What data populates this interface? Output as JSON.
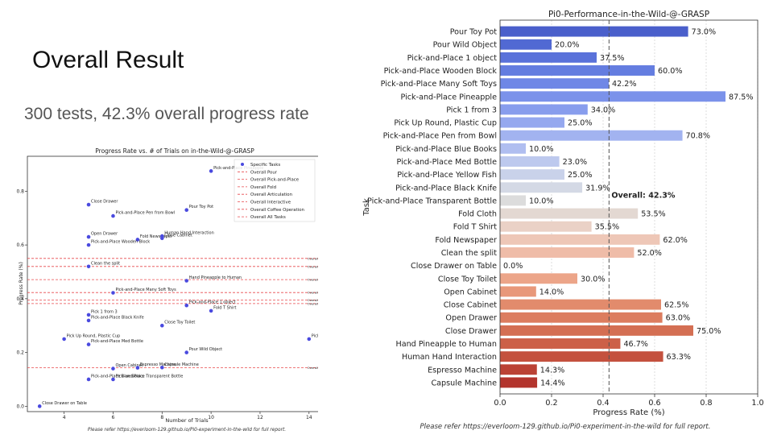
{
  "slide": {
    "title": "Overall Result",
    "subtitle": "300 tests, 42.3% overall progress rate"
  },
  "chart_data": [
    {
      "type": "scatter",
      "title": "Progress Rate vs. # of Trials on in-the-Wild-@-GRASP",
      "xlabel": "Number of Trials",
      "ylabel": "Progress Rate (%)",
      "xlim": [
        2.5,
        14.5
      ],
      "ylim": [
        -0.02,
        0.93
      ],
      "xticks": [
        4,
        6,
        8,
        10,
        12,
        14
      ],
      "yticks": [
        0.0,
        0.2,
        0.4,
        0.6,
        0.8
      ],
      "grid": false,
      "legend_position": "top-right",
      "point_color": "#4a4adf",
      "line_color": "#e8484c",
      "legend": [
        "Specific Tasks",
        "Overall Pour",
        "Overall Pick-and-Place",
        "Overall Fold",
        "Overall Articulation",
        "Overall Interactive",
        "Overall Coffee Operation",
        "Overall All Tasks"
      ],
      "points": [
        {
          "label": "Pick-and-Place Pineapple",
          "x": 10,
          "y": 0.875
        },
        {
          "label": "Close Drawer",
          "x": 5,
          "y": 0.75
        },
        {
          "label": "Pour Toy Pot",
          "x": 9,
          "y": 0.73
        },
        {
          "label": "Pick-and-Place Pen from Bowl",
          "x": 6,
          "y": 0.708
        },
        {
          "label": "Open Drawer",
          "x": 5,
          "y": 0.63
        },
        {
          "label": "Fold Newspaper",
          "x": 7,
          "y": 0.62
        },
        {
          "label": "Human Hand Interaction",
          "x": 8,
          "y": 0.633
        },
        {
          "label": "Close Cabinet",
          "x": 8,
          "y": 0.625
        },
        {
          "label": "Pick-and-Place Wooden Block",
          "x": 5,
          "y": 0.6
        },
        {
          "label": "Clean the split",
          "x": 5,
          "y": 0.52
        },
        {
          "label": "Hand Pineapple to Human",
          "x": 9,
          "y": 0.467
        },
        {
          "label": "Pick-and-Place Many Soft Toys",
          "x": 6,
          "y": 0.422
        },
        {
          "label": "Pick-and-Place 1 object",
          "x": 9,
          "y": 0.375
        },
        {
          "label": "Fold T Shirt",
          "x": 10,
          "y": 0.355
        },
        {
          "label": "Pick 1 from 3",
          "x": 5,
          "y": 0.34
        },
        {
          "label": "Pick-and-Place Black Knife",
          "x": 5,
          "y": 0.319
        },
        {
          "label": "Close Toy Toilet",
          "x": 8,
          "y": 0.3
        },
        {
          "label": "Pick-and-Place Yellow Fish",
          "x": 14,
          "y": 0.25
        },
        {
          "label": "Pick Up Round, Plastic Cup",
          "x": 4,
          "y": 0.25
        },
        {
          "label": "Pick-and-Place Med Bottle",
          "x": 5,
          "y": 0.23
        },
        {
          "label": "Pour Wild Object",
          "x": 9,
          "y": 0.2
        },
        {
          "label": "Open Cabinet",
          "x": 6,
          "y": 0.14
        },
        {
          "label": "Espresso Machine",
          "x": 7,
          "y": 0.143
        },
        {
          "label": "Capsule Machine",
          "x": 8,
          "y": 0.144
        },
        {
          "label": "Pick-and-Place Blue Books",
          "x": 5,
          "y": 0.1
        },
        {
          "label": "Pick-and-Place Transparent Bottle",
          "x": 6,
          "y": 0.1
        },
        {
          "label": "Close Drawer on Table",
          "x": 3,
          "y": 0.0
        }
      ],
      "lines": [
        {
          "label": "Overall Interactive: 55.0%",
          "y": 0.55
        },
        {
          "label": "Overall Pour: 52.0%",
          "y": 0.52
        },
        {
          "label": "Overall Fold: 47.1%",
          "y": 0.471
        },
        {
          "label": "Overall All Tasks: 42.3%",
          "y": 0.423
        },
        {
          "label": "Overall Pick-and-Place: 39.5%",
          "y": 0.395
        },
        {
          "label": "Overall Articulation: 38.2%",
          "y": 0.382
        },
        {
          "label": "Overall Coffee Operation: 14",
          "y": 0.143
        }
      ],
      "footnote": "Please refer https://everloom-129.github.io/Pi0-experiment-in-the-wild for full report."
    },
    {
      "type": "bar",
      "orientation": "horizontal",
      "title": "Pi0-Performance-in-the-Wild-@-GRASP",
      "xlabel": "Progress Rate (%)",
      "ylabel": "Task",
      "xlim": [
        0.0,
        1.0
      ],
      "xticks": [
        0.0,
        0.2,
        0.4,
        0.6,
        0.8,
        1.0
      ],
      "grid": true,
      "categories": [
        "Pour Toy Pot",
        "Pour Wild Object",
        "Pick-and-Place 1 object",
        "Pick-and-Place Wooden Block",
        "Pick-and-Place Many Soft Toys",
        "Pick-and-Place Pineapple",
        "Pick 1 from 3",
        "Pick Up Round, Plastic Cup",
        "Pick-and-Place Pen from Bowl",
        "Pick-and-Place Blue Books",
        "Pick-and-Place Med Bottle",
        "Pick-and-Place Yellow Fish",
        "Pick-and-Place Black Knife",
        "Pick-and-Place Transparent Bottle",
        "Fold Cloth",
        "Fold T Shirt",
        "Fold Newspaper",
        "Clean the split",
        "Close Drawer on Table",
        "Close Toy Toilet",
        "Open Cabinet",
        "Close Cabinet",
        "Open Drawer",
        "Close Drawer",
        "Hand Pineapple to Human",
        "Human Hand Interaction",
        "Espresso Machine",
        "Capsule Machine"
      ],
      "values": [
        0.73,
        0.2,
        0.375,
        0.6,
        0.422,
        0.875,
        0.34,
        0.25,
        0.708,
        0.1,
        0.23,
        0.25,
        0.319,
        0.1,
        0.535,
        0.355,
        0.62,
        0.52,
        0.0,
        0.3,
        0.14,
        0.625,
        0.63,
        0.75,
        0.467,
        0.633,
        0.143,
        0.144
      ],
      "value_labels": [
        "73.0%",
        "20.0%",
        "37.5%",
        "60.0%",
        "42.2%",
        "87.5%",
        "34.0%",
        "25.0%",
        "70.8%",
        "10.0%",
        "23.0%",
        "25.0%",
        "31.9%",
        "10.0%",
        "53.5%",
        "35.5%",
        "62.0%",
        "52.0%",
        "0.0%",
        "30.0%",
        "14.0%",
        "62.5%",
        "63.0%",
        "75.0%",
        "46.7%",
        "63.3%",
        "14.3%",
        "14.4%"
      ],
      "colors": [
        "#4a5fcb",
        "#5169d3",
        "#5a72da",
        "#647de0",
        "#6f87e6",
        "#7b92ea",
        "#889ded",
        "#95a8ef",
        "#a2b3f0",
        "#b0bef0",
        "#bdc9ee",
        "#c9d2ea",
        "#d4d9e5",
        "#dcdcdc",
        "#e3d8d2",
        "#ead1c6",
        "#eec7b7",
        "#efbca8",
        "#efb199",
        "#eca589",
        "#e8987a",
        "#e28b6c",
        "#dc7d5f",
        "#d46f53",
        "#cc6048",
        "#c4513e",
        "#bb4235",
        "#b3342d"
      ],
      "reference_line": {
        "x": 0.423,
        "label": "Overall: 42.3%"
      },
      "footnote": "Please refer https://everloom-129.github.io/Pi0-experiment-in-the-wild for full report."
    }
  ]
}
